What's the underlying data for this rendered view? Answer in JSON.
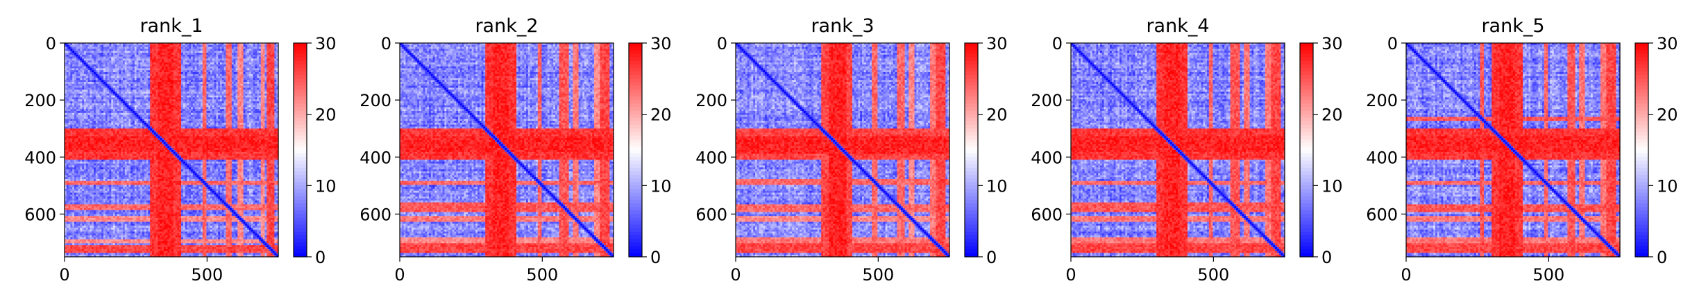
{
  "chart_data": [
    {
      "type": "heatmap",
      "title": "rank_1",
      "xlabel": "",
      "ylabel": "",
      "xlim": [
        0,
        750
      ],
      "ylim": [
        750,
        0
      ],
      "x_ticks": [
        0,
        500
      ],
      "y_ticks": [
        0,
        200,
        400,
        600
      ],
      "colorbar": {
        "colormap": "bwr",
        "vmin": 0,
        "vmax": 30,
        "ticks": [
          0,
          10,
          20,
          30
        ]
      },
      "colors": {
        "low": "#0000ff",
        "mid": "#ffffff",
        "high": "#ff0000"
      },
      "red_bands": [
        {
          "start": 300,
          "end": 410,
          "value": 29
        },
        {
          "start": 330,
          "end": 385,
          "value": 30
        },
        {
          "start": 485,
          "end": 500,
          "value": 26
        },
        {
          "start": 565,
          "end": 585,
          "value": 26
        },
        {
          "start": 610,
          "end": 625,
          "value": 24
        },
        {
          "start": 690,
          "end": 700,
          "value": 24
        },
        {
          "start": 708,
          "end": 735,
          "value": 28
        }
      ],
      "diagonal": "low"
    },
    {
      "type": "heatmap",
      "title": "rank_2",
      "xlabel": "",
      "ylabel": "",
      "xlim": [
        0,
        750
      ],
      "ylim": [
        750,
        0
      ],
      "x_ticks": [
        0,
        500
      ],
      "y_ticks": [
        0,
        200,
        400,
        600
      ],
      "colorbar": {
        "colormap": "bwr",
        "vmin": 0,
        "vmax": 30,
        "ticks": [
          0,
          10,
          20,
          30
        ]
      },
      "colors": {
        "low": "#0000ff",
        "mid": "#ffffff",
        "high": "#ff0000"
      },
      "red_bands": [
        {
          "start": 300,
          "end": 410,
          "value": 29
        },
        {
          "start": 330,
          "end": 385,
          "value": 30
        },
        {
          "start": 485,
          "end": 500,
          "value": 26
        },
        {
          "start": 560,
          "end": 590,
          "value": 27
        },
        {
          "start": 605,
          "end": 625,
          "value": 25
        },
        {
          "start": 685,
          "end": 700,
          "value": 24
        },
        {
          "start": 705,
          "end": 735,
          "value": 28
        }
      ],
      "diagonal": "low"
    },
    {
      "type": "heatmap",
      "title": "rank_3",
      "xlabel": "",
      "ylabel": "",
      "xlim": [
        0,
        750
      ],
      "ylim": [
        750,
        0
      ],
      "x_ticks": [
        0,
        500
      ],
      "y_ticks": [
        0,
        200,
        400,
        600
      ],
      "colorbar": {
        "colormap": "bwr",
        "vmin": 0,
        "vmax": 30,
        "ticks": [
          0,
          10,
          20,
          30
        ]
      },
      "colors": {
        "low": "#0000ff",
        "mid": "#ffffff",
        "high": "#ff0000"
      },
      "red_bands": [
        {
          "start": 300,
          "end": 410,
          "value": 28
        },
        {
          "start": 330,
          "end": 390,
          "value": 30
        },
        {
          "start": 480,
          "end": 500,
          "value": 26
        },
        {
          "start": 565,
          "end": 590,
          "value": 26
        },
        {
          "start": 610,
          "end": 625,
          "value": 24
        },
        {
          "start": 680,
          "end": 700,
          "value": 25
        },
        {
          "start": 705,
          "end": 735,
          "value": 28
        }
      ],
      "diagonal": "low"
    },
    {
      "type": "heatmap",
      "title": "rank_4",
      "xlabel": "",
      "ylabel": "",
      "xlim": [
        0,
        750
      ],
      "ylim": [
        750,
        0
      ],
      "x_ticks": [
        0,
        500
      ],
      "y_ticks": [
        0,
        200,
        400,
        600
      ],
      "colorbar": {
        "colormap": "bwr",
        "vmin": 0,
        "vmax": 30,
        "ticks": [
          0,
          10,
          20,
          30
        ]
      },
      "colors": {
        "low": "#0000ff",
        "mid": "#ffffff",
        "high": "#ff0000"
      },
      "red_bands": [
        {
          "start": 300,
          "end": 410,
          "value": 29
        },
        {
          "start": 330,
          "end": 385,
          "value": 30
        },
        {
          "start": 485,
          "end": 500,
          "value": 26
        },
        {
          "start": 560,
          "end": 590,
          "value": 27
        },
        {
          "start": 605,
          "end": 625,
          "value": 25
        },
        {
          "start": 685,
          "end": 700,
          "value": 25
        },
        {
          "start": 705,
          "end": 735,
          "value": 28
        }
      ],
      "diagonal": "low"
    },
    {
      "type": "heatmap",
      "title": "rank_5",
      "xlabel": "",
      "ylabel": "",
      "xlim": [
        0,
        750
      ],
      "ylim": [
        750,
        0
      ],
      "x_ticks": [
        0,
        500
      ],
      "y_ticks": [
        0,
        200,
        400,
        600
      ],
      "colorbar": {
        "colormap": "bwr",
        "vmin": 0,
        "vmax": 30,
        "ticks": [
          0,
          10,
          20,
          30
        ]
      },
      "colors": {
        "low": "#0000ff",
        "mid": "#ffffff",
        "high": "#ff0000"
      },
      "red_bands": [
        {
          "start": 260,
          "end": 275,
          "value": 27
        },
        {
          "start": 300,
          "end": 410,
          "value": 29
        },
        {
          "start": 330,
          "end": 385,
          "value": 30
        },
        {
          "start": 485,
          "end": 500,
          "value": 26
        },
        {
          "start": 565,
          "end": 590,
          "value": 27
        },
        {
          "start": 610,
          "end": 625,
          "value": 25
        },
        {
          "start": 685,
          "end": 700,
          "value": 25
        },
        {
          "start": 705,
          "end": 735,
          "value": 28
        }
      ],
      "diagonal": "low"
    }
  ]
}
